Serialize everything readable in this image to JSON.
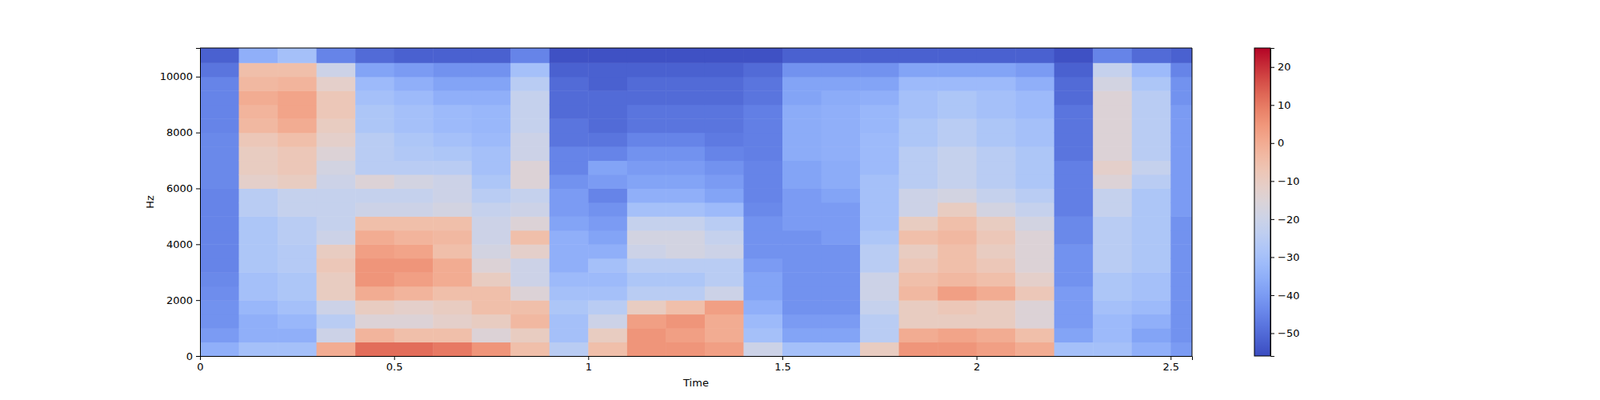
{
  "chart_data": {
    "type": "heatmap",
    "xlabel": "Time",
    "ylabel": "Hz",
    "xlim": [
      0,
      2.555
    ],
    "ylim": [
      0,
      11025
    ],
    "xticks": [
      0,
      0.5,
      1,
      1.5,
      2,
      2.5
    ],
    "yticks": [
      0,
      2000,
      4000,
      6000,
      8000,
      10000
    ],
    "x_bins": [
      0,
      0.1,
      0.2,
      0.3,
      0.4,
      0.5,
      0.6,
      0.7,
      0.8,
      0.9,
      1.0,
      1.1,
      1.2,
      1.3,
      1.4,
      1.5,
      1.6,
      1.7,
      1.8,
      1.9,
      2.0,
      2.1,
      2.2,
      2.3,
      2.4,
      2.5,
      2.555
    ],
    "y_bins": [
      0,
      500,
      1000,
      1500,
      2000,
      2500,
      3000,
      3500,
      4000,
      4500,
      5000,
      5500,
      6000,
      6500,
      7000,
      7500,
      8000,
      8500,
      9000,
      9500,
      10000,
      10500,
      11025
    ],
    "values": [
      [
        -35,
        -40,
        -42,
        -42,
        -43,
        -44,
        -45,
        -45,
        -45,
        -45,
        -45,
        -45,
        -44,
        -44,
        -44,
        -44,
        -45,
        -45,
        -45,
        -45,
        -48,
        -52
      ],
      [
        -30,
        -35,
        -35,
        -33,
        -30,
        -30,
        -28,
        -28,
        -28,
        -28,
        -25,
        -25,
        -12,
        -10,
        -10,
        -8,
        -3,
        -2,
        0,
        -3,
        -5,
        -35
      ],
      [
        -30,
        -35,
        -33,
        -30,
        -28,
        -28,
        -26,
        -26,
        -25,
        -25,
        -22,
        -22,
        -10,
        -8,
        -8,
        -5,
        0,
        2,
        2,
        -2,
        -5,
        -30
      ],
      [
        0,
        -20,
        -25,
        -20,
        -10,
        -10,
        -8,
        -10,
        -20,
        -22,
        -22,
        -22,
        -20,
        -18,
        -15,
        -12,
        -10,
        -8,
        -8,
        -12,
        -20,
        -45
      ],
      [
        12,
        -2,
        -15,
        -10,
        0,
        5,
        5,
        3,
        0,
        -5,
        -20,
        -22,
        -15,
        -25,
        -25,
        -25,
        -28,
        -28,
        -30,
        -32,
        -38,
        -50
      ],
      [
        12,
        -5,
        -15,
        -12,
        -2,
        3,
        5,
        2,
        -2,
        -5,
        -20,
        -22,
        -18,
        -25,
        -27,
        -28,
        -30,
        -30,
        -32,
        -35,
        -40,
        -52
      ],
      [
        10,
        -5,
        -12,
        -10,
        -5,
        0,
        0,
        -5,
        -3,
        -5,
        -18,
        -20,
        -20,
        -25,
        -28,
        -30,
        -32,
        -32,
        -35,
        -38,
        -42,
        -52
      ],
      [
        5,
        -15,
        -10,
        -5,
        -5,
        -10,
        -15,
        -18,
        -20,
        -20,
        -22,
        -25,
        -28,
        -30,
        -30,
        -32,
        -33,
        -33,
        -35,
        -38,
        -42,
        -52
      ],
      [
        -5,
        -10,
        -3,
        -5,
        -15,
        -20,
        -20,
        -12,
        -5,
        -15,
        -20,
        -22,
        -15,
        -15,
        -20,
        -20,
        -22,
        -22,
        -22,
        -25,
        -30,
        -45
      ],
      [
        -25,
        -30,
        -30,
        -28,
        -30,
        -32,
        -35,
        -35,
        -35,
        -38,
        -40,
        -40,
        -42,
        -45,
        -45,
        -48,
        -48,
        -50,
        -50,
        -50,
        -52,
        -55
      ],
      [
        -5,
        -10,
        -20,
        -25,
        -30,
        -32,
        -30,
        -35,
        -38,
        -40,
        -42,
        -45,
        -40,
        -38,
        -45,
        -48,
        -50,
        -50,
        -50,
        -52,
        -52,
        -55
      ],
      [
        5,
        5,
        3,
        -10,
        -25,
        -28,
        -25,
        -20,
        -18,
        -22,
        -30,
        -35,
        -38,
        -40,
        -42,
        -45,
        -48,
        -48,
        -50,
        -50,
        -52,
        -55
      ],
      [
        5,
        3,
        5,
        -5,
        -25,
        -28,
        -25,
        -18,
        -18,
        -22,
        -30,
        -35,
        -38,
        -40,
        -42,
        -45,
        -48,
        -48,
        -50,
        -50,
        -52,
        -55
      ],
      [
        3,
        0,
        0,
        3,
        -20,
        -25,
        -25,
        -20,
        -22,
        -25,
        -32,
        -38,
        -40,
        -42,
        -45,
        -47,
        -48,
        -48,
        -50,
        -50,
        -52,
        -55
      ],
      [
        -20,
        -30,
        -32,
        -35,
        -38,
        -38,
        -40,
        -42,
        -42,
        -42,
        -44,
        -45,
        -45,
        -45,
        -46,
        -46,
        -46,
        -46,
        -48,
        -48,
        -50,
        -55
      ],
      [
        -30,
        -38,
        -40,
        -42,
        -42,
        -42,
        -42,
        -42,
        -42,
        -40,
        -40,
        -40,
        -38,
        -38,
        -36,
        -36,
        -36,
        -36,
        -38,
        -38,
        -42,
        -52
      ],
      [
        -30,
        -38,
        -40,
        -42,
        -42,
        -42,
        -42,
        -42,
        -40,
        -40,
        -40,
        -38,
        -36,
        -36,
        -35,
        -35,
        -35,
        -35,
        -36,
        -38,
        -42,
        -52
      ],
      [
        -10,
        -25,
        -25,
        -22,
        -20,
        -20,
        -25,
        -25,
        -28,
        -30,
        -30,
        -30,
        -30,
        -32,
        -32,
        -32,
        -33,
        -33,
        -35,
        -38,
        -42,
        -52
      ],
      [
        5,
        0,
        -10,
        -10,
        -3,
        -5,
        -8,
        -10,
        -5,
        -10,
        -20,
        -20,
        -25,
        -25,
        -25,
        -28,
        -28,
        -30,
        -30,
        -32,
        -38,
        -52
      ],
      [
        5,
        2,
        -10,
        -8,
        3,
        -3,
        -5,
        -5,
        -3,
        -5,
        -10,
        -18,
        -22,
        -22,
        -22,
        -25,
        -25,
        -28,
        -28,
        -32,
        -38,
        -52
      ],
      [
        3,
        0,
        -10,
        -10,
        0,
        -5,
        -8,
        -10,
        -8,
        -10,
        -18,
        -22,
        -25,
        -25,
        -25,
        -28,
        -28,
        -30,
        -30,
        -32,
        -38,
        -52
      ],
      [
        0,
        -5,
        -15,
        -15,
        -8,
        -12,
        -15,
        -15,
        -15,
        -18,
        -22,
        -25,
        -28,
        -28,
        -28,
        -30,
        -30,
        -32,
        -32,
        -35,
        -40,
        -52
      ],
      [
        -30,
        -38,
        -40,
        -40,
        -40,
        -42,
        -42,
        -42,
        -44,
        -44,
        -46,
        -46,
        -46,
        -46,
        -48,
        -48,
        -48,
        -48,
        -50,
        -50,
        -52,
        -55
      ],
      [
        -30,
        -32,
        -32,
        -30,
        -28,
        -28,
        -25,
        -25,
        -25,
        -25,
        -22,
        -22,
        -15,
        -12,
        -15,
        -15,
        -15,
        -15,
        -15,
        -18,
        -22,
        -45
      ],
      [
        -35,
        -38,
        -35,
        -32,
        -30,
        -30,
        -28,
        -28,
        -28,
        -28,
        -28,
        -28,
        -25,
        -22,
        -25,
        -25,
        -25,
        -25,
        -25,
        -28,
        -32,
        -50
      ],
      [
        -40,
        -42,
        -42,
        -42,
        -42,
        -42,
        -42,
        -42,
        -42,
        -42,
        -40,
        -40,
        -40,
        -40,
        -40,
        -40,
        -40,
        -40,
        -42,
        -42,
        -45,
        -52
      ]
    ],
    "color_range": [
      -56,
      25
    ],
    "color_ticks": [
      {
        "value": -50,
        "label": "−50"
      },
      {
        "value": -40,
        "label": "−40"
      },
      {
        "value": -30,
        "label": "−30"
      },
      {
        "value": -20,
        "label": "−20"
      },
      {
        "value": -10,
        "label": "−10"
      },
      0,
      10,
      20
    ]
  }
}
